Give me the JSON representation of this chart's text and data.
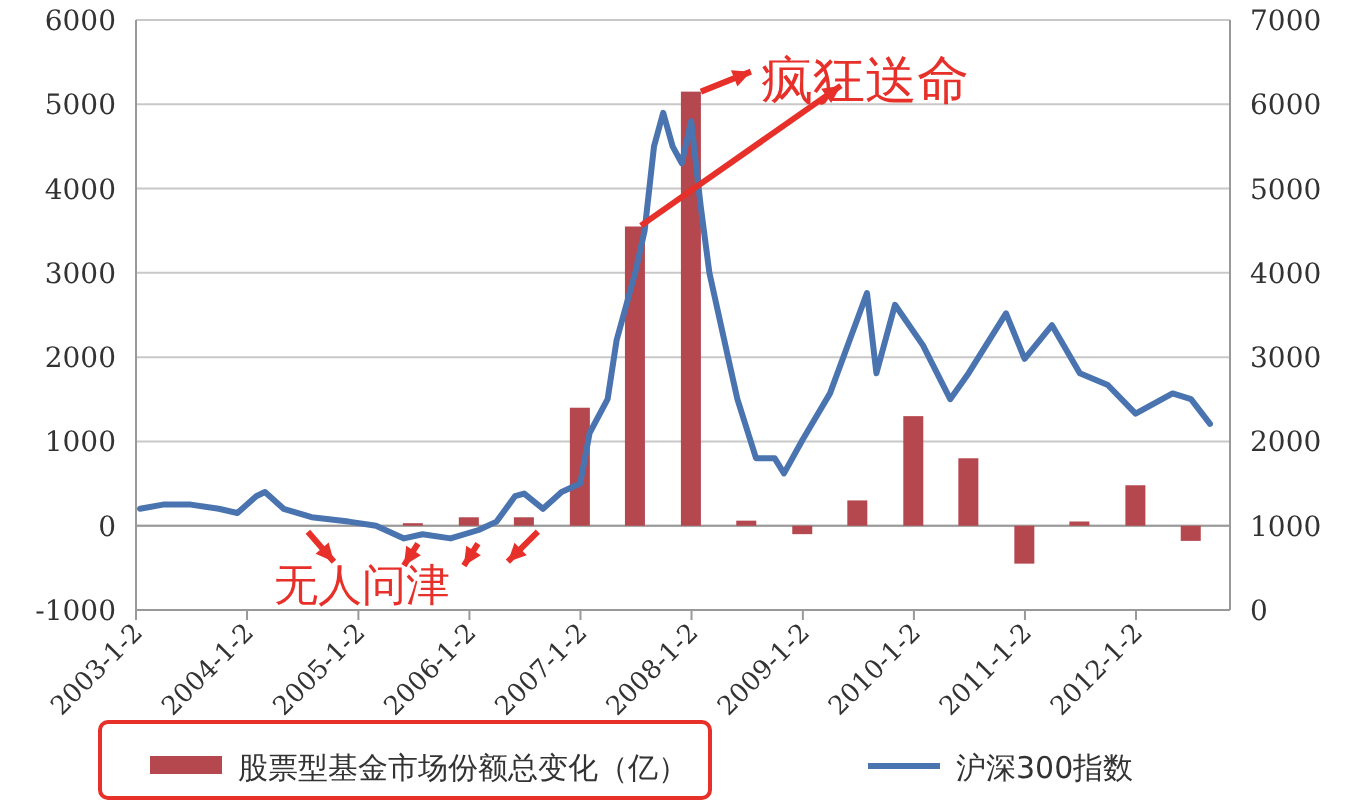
{
  "chart_data": {
    "type": "bar",
    "x": [
      "2005-06-30",
      "2005-12-31",
      "2006-06-30",
      "2006-12-31",
      "2007-06-30",
      "2007-12-31",
      "2008-06-30",
      "2008-12-31",
      "2009-06-30",
      "2009-12-31",
      "2010-06-30",
      "2010-12-31",
      "2011-06-30",
      "2011-12-31",
      "2012-06-30"
    ],
    "series": [
      {
        "name": "股票型基金市场份额总变化（亿）",
        "axis": "y",
        "color": "#b5474f",
        "values": [
          30,
          100,
          100,
          1400,
          3550,
          5150,
          60,
          -100,
          300,
          1300,
          800,
          -450,
          50,
          480,
          -180
        ]
      },
      {
        "name": "沪深300指数",
        "type": "line",
        "axis": "y2",
        "color": "#4a74b0",
        "x": [
          "2003-01-15",
          "2003-04",
          "2003-07",
          "2003-10",
          "2003-12",
          "2004-02",
          "2004-03",
          "2004-05",
          "2004-08",
          "2004-12",
          "2005-03",
          "2005-06",
          "2005-08",
          "2005-11",
          "2006-02",
          "2006-04",
          "2006-06",
          "2006-07",
          "2006-09",
          "2006-11",
          "2007-01",
          "2007-02",
          "2007-04",
          "2007-05",
          "2007-07",
          "2007-08",
          "2007-09",
          "2007-10",
          "2007-11",
          "2007-12",
          "2008-01",
          "2008-02",
          "2008-03",
          "2008-05",
          "2008-06",
          "2008-08",
          "2008-10",
          "2008-11",
          "2009-01",
          "2009-04",
          "2009-08",
          "2009-09",
          "2009-11",
          "2010-02",
          "2010-05",
          "2010-07",
          "2010-11",
          "2011-01",
          "2011-04",
          "2011-07",
          "2011-10",
          "2012-01",
          "2012-05",
          "2012-07",
          "2012-09"
        ],
        "values": [
          1200,
          1250,
          1250,
          1200,
          1150,
          1350,
          1400,
          1200,
          1100,
          1050,
          1000,
          850,
          900,
          850,
          950,
          1050,
          1350,
          1380,
          1200,
          1400,
          1500,
          2100,
          2500,
          3200,
          4000,
          4500,
          5500,
          5900,
          5500,
          5300,
          5800,
          4800,
          4000,
          3000,
          2500,
          1800,
          1800,
          1620,
          2020,
          2570,
          3760,
          2810,
          3620,
          3140,
          2500,
          2810,
          3520,
          2980,
          3380,
          2810,
          2670,
          2330,
          2570,
          2500,
          2210
        ]
      }
    ],
    "xlim": [
      "2003-01-02",
      "2012-11-06"
    ],
    "xticks": [
      {
        "value": "2003-01-02",
        "label": "2003-1-2"
      },
      {
        "value": "2004-01-02",
        "label": "2004-1-2"
      },
      {
        "value": "2005-01-02",
        "label": "2005-1-2"
      },
      {
        "value": "2006-01-02",
        "label": "2006-1-2"
      },
      {
        "value": "2007-01-02",
        "label": "2007-1-2"
      },
      {
        "value": "2008-01-02",
        "label": "2008-1-2"
      },
      {
        "value": "2009-01-02",
        "label": "2009-1-2"
      },
      {
        "value": "2010-01-02",
        "label": "2010-1-2"
      },
      {
        "value": "2011-01-02",
        "label": "2011-1-2"
      },
      {
        "value": "2012-01-02",
        "label": "2012-1-2"
      }
    ],
    "ylim": [
      -1000,
      6000
    ],
    "yticks": [
      -1000,
      0,
      1000,
      2000,
      3000,
      4000,
      5000,
      6000
    ],
    "y2lim": [
      0,
      7000
    ],
    "y2ticks": [
      0,
      1000,
      2000,
      3000,
      4000,
      5000,
      6000,
      7000
    ],
    "grid": "y",
    "legend": "bottom",
    "annotations": [
      {
        "text": "疯狂送命",
        "x": "2007-12-31",
        "y": 5150
      },
      {
        "text": "无人问津",
        "x": "2006-06-30",
        "y": 0
      }
    ]
  }
}
